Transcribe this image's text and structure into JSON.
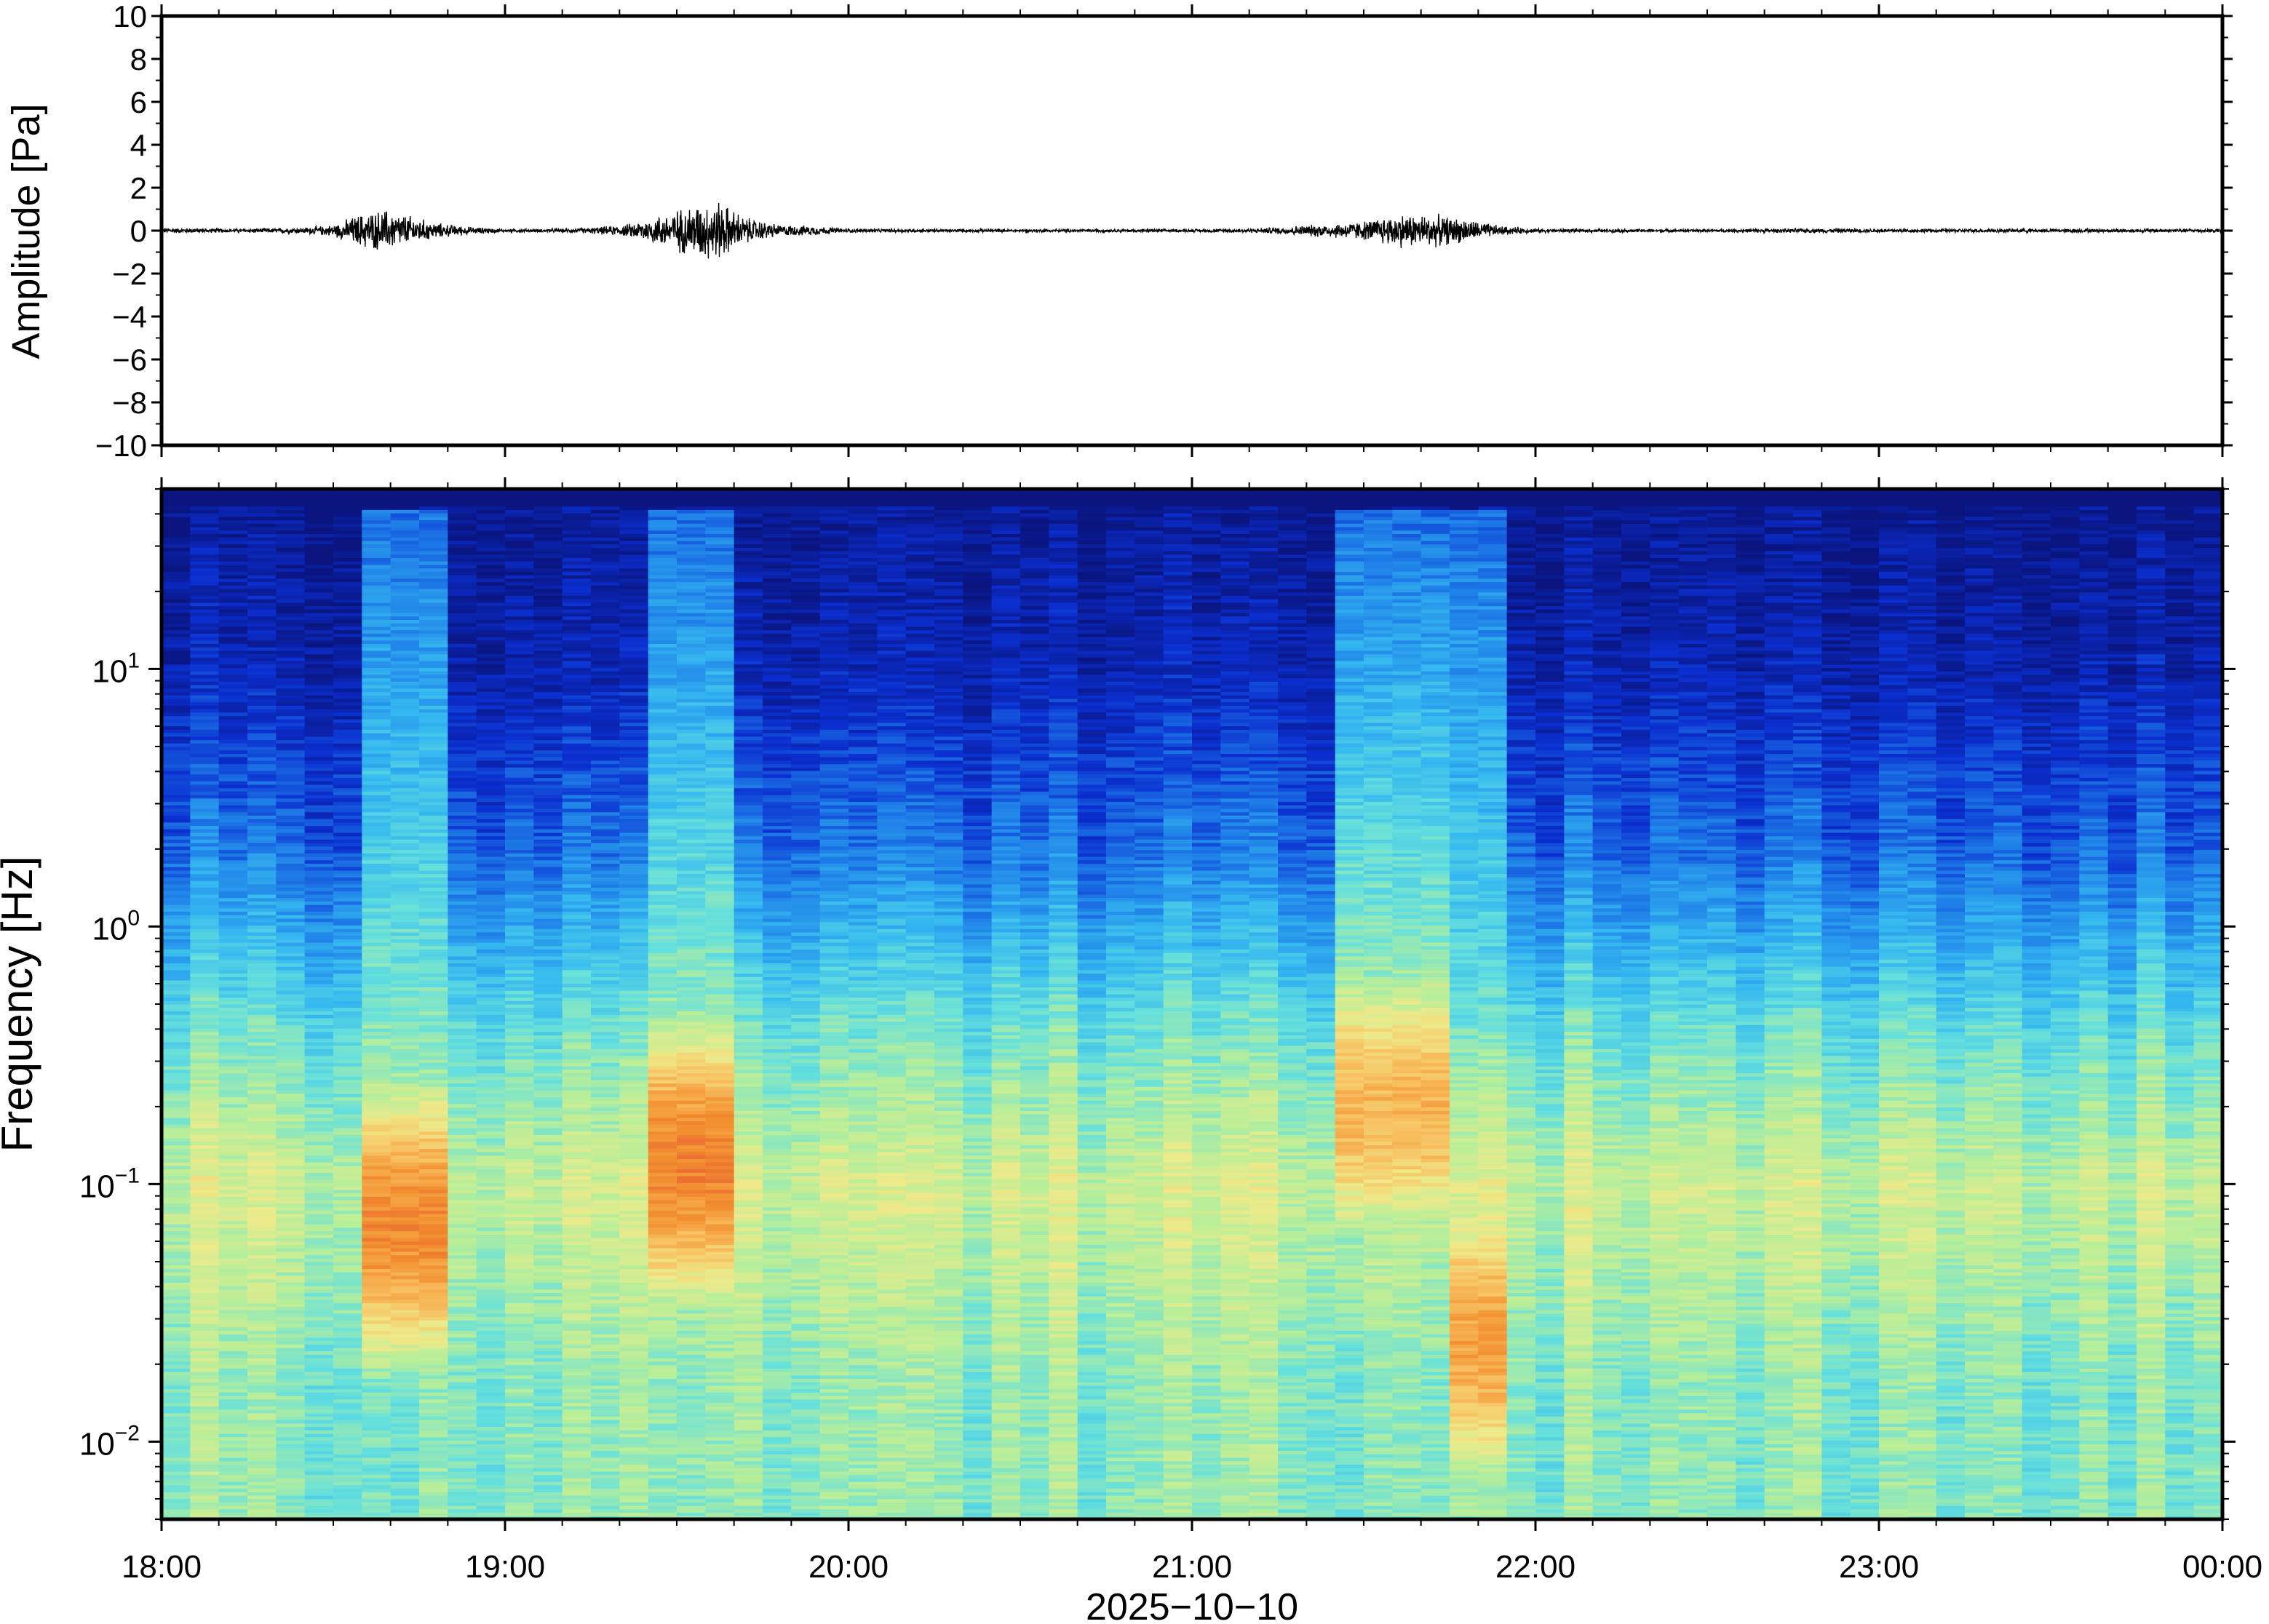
{
  "chart_data": [
    {
      "type": "line",
      "panel": "waveform",
      "ylabel": "Amplitude [Pa]",
      "ylim": [
        -10,
        10
      ],
      "yticks": [
        10,
        8,
        6,
        4,
        2,
        0,
        -2,
        -4,
        -6,
        -8,
        -10
      ],
      "ytick_labels": [
        "10",
        "8",
        "6",
        "4",
        "2",
        "0",
        "−2",
        "−4",
        "−6",
        "−8",
        "−10"
      ],
      "x_range_hours": [
        18,
        24
      ],
      "line_color": "#000000",
      "series": [
        {
          "envelope": {
            "t_hours": [
              18.0,
              18.2,
              18.4,
              18.5,
              18.58,
              18.65,
              18.72,
              18.8,
              18.9,
              19.0,
              19.2,
              19.35,
              19.45,
              19.55,
              19.62,
              19.7,
              19.8,
              19.9,
              20.0,
              20.5,
              21.0,
              21.2,
              21.5,
              21.6,
              21.7,
              21.8,
              21.9,
              22.0,
              22.5,
              22.8,
              23.0,
              23.5,
              24.0
            ],
            "amp_pa": [
              0.15,
              0.1,
              0.15,
              0.3,
              0.9,
              1.1,
              0.8,
              0.4,
              0.2,
              0.08,
              0.1,
              0.3,
              0.8,
              1.4,
              1.6,
              0.7,
              0.3,
              0.25,
              0.1,
              0.08,
              0.08,
              0.12,
              0.5,
              0.9,
              0.85,
              0.6,
              0.25,
              0.1,
              0.08,
              0.12,
              0.1,
              0.1,
              0.1
            ]
          }
        }
      ]
    },
    {
      "type": "heatmap",
      "panel": "spectrogram",
      "ylabel": "Frequency [Hz]",
      "xlabel": "2025−10−10",
      "y_scale": "log",
      "ylim_hz": [
        0.005,
        50
      ],
      "yticks_hz": [
        10,
        1,
        0.1,
        0.01
      ],
      "ytick_labels": [
        {
          "base": "10",
          "exp": "1"
        },
        {
          "base": "10",
          "exp": "0"
        },
        {
          "base": "10",
          "exp": "−1"
        },
        {
          "base": "10",
          "exp": "−2"
        }
      ],
      "xticks_hours": [
        18,
        19,
        20,
        21,
        22,
        23,
        24
      ],
      "xtick_labels": [
        "18:00",
        "19:00",
        "20:00",
        "21:00",
        "22:00",
        "23:00",
        "00:00"
      ],
      "colormap": [
        "#0a1580",
        "#0b2fd0",
        "#1f7fe8",
        "#35b8f0",
        "#66e0dc",
        "#b7ee9a",
        "#eeea8a",
        "#f8c060",
        "#f29030",
        "#e86030"
      ],
      "events": [
        {
          "start_hour": 18.55,
          "end_hour": 18.87,
          "peak_hz": 0.07,
          "peak_level": 0.9
        },
        {
          "start_hour": 19.38,
          "end_hour": 19.68,
          "peak_hz": 0.12,
          "peak_level": 0.92
        },
        {
          "start_hour": 21.42,
          "end_hour": 21.78,
          "peak_hz": 0.2,
          "peak_level": 0.8
        },
        {
          "start_hour": 21.78,
          "end_hour": 21.92,
          "peak_hz": 0.025,
          "peak_level": 0.85
        }
      ]
    }
  ]
}
